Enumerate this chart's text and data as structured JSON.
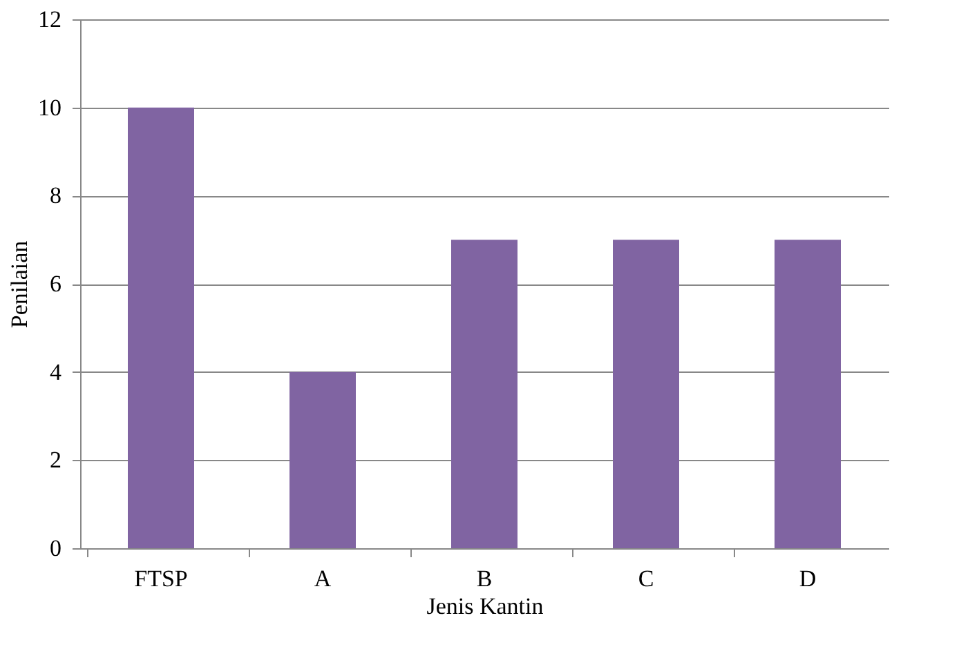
{
  "chart_data": {
    "type": "bar",
    "xlabel": "Jenis Kantin",
    "ylabel": "Penilaian",
    "categories": [
      "FTSP",
      "A",
      "B",
      "C",
      "D"
    ],
    "series": [
      {
        "color": "#8064a2",
        "values": [
          10,
          4,
          7,
          7,
          7
        ]
      }
    ],
    "ylim": [
      0,
      12
    ],
    "yticks": [
      0,
      2,
      4,
      6,
      8,
      10,
      12
    ],
    "grid": "y",
    "legend": false
  }
}
